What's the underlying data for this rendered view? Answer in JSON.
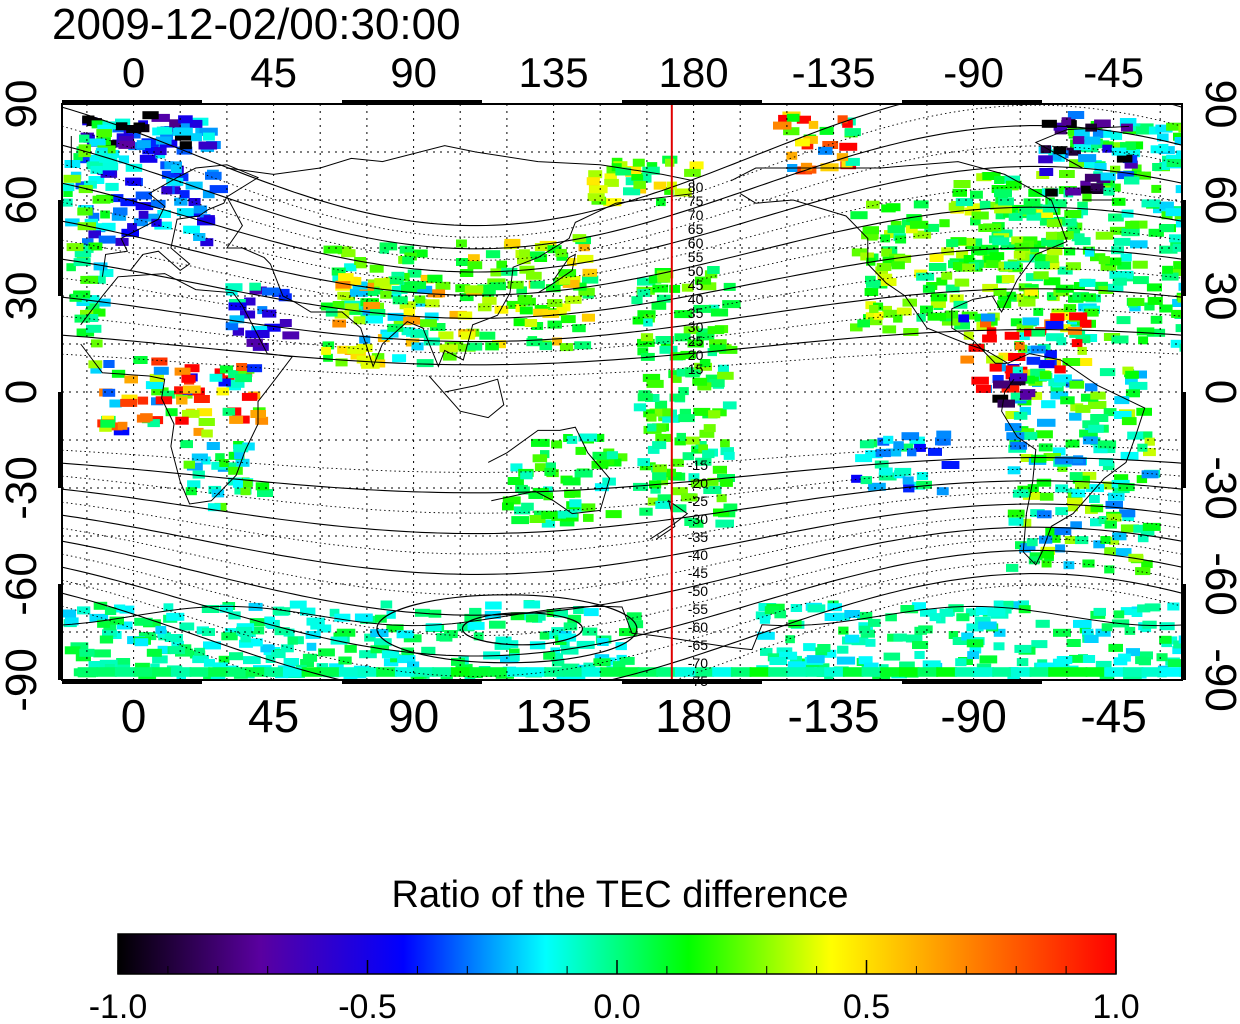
{
  "title": "2009-12-02/00:30:00",
  "colorbar": {
    "label": "Ratio of the TEC difference",
    "ticks": [
      "-1.0",
      "-0.5",
      "0.0",
      "0.5",
      "1.0"
    ],
    "range": [
      -1.0,
      1.0
    ],
    "stops": [
      "#000000",
      "#5a00a0",
      "#0000ff",
      "#00ffff",
      "#00ff00",
      "#ffff00",
      "#ff7f00",
      "#ff0000"
    ]
  },
  "map": {
    "lon_ticks": [
      "0",
      "45",
      "90",
      "135",
      "180",
      "-135",
      "-90",
      "-45"
    ],
    "lat_ticks": [
      "90",
      "60",
      "30",
      "0",
      "-30",
      "-60",
      "-90"
    ],
    "lat_ticks_right": [
      "90",
      "60",
      "30",
      "0",
      "-30",
      "-60",
      "-90"
    ],
    "red_meridian_lon": 173,
    "contour_labels_north": [
      "80",
      "75",
      "70",
      "65",
      "60",
      "55",
      "50",
      "45",
      "40",
      "35",
      "30",
      "25",
      "20",
      "15"
    ],
    "contour_labels_south": [
      "-15",
      "-20",
      "-25",
      "-30",
      "-35",
      "-40",
      "-45",
      "-50",
      "-55",
      "-60",
      "-65",
      "-70",
      "-75"
    ],
    "colors": {
      "meridian": "#e00000",
      "grid": "#000000",
      "coast": "#000000"
    }
  }
}
